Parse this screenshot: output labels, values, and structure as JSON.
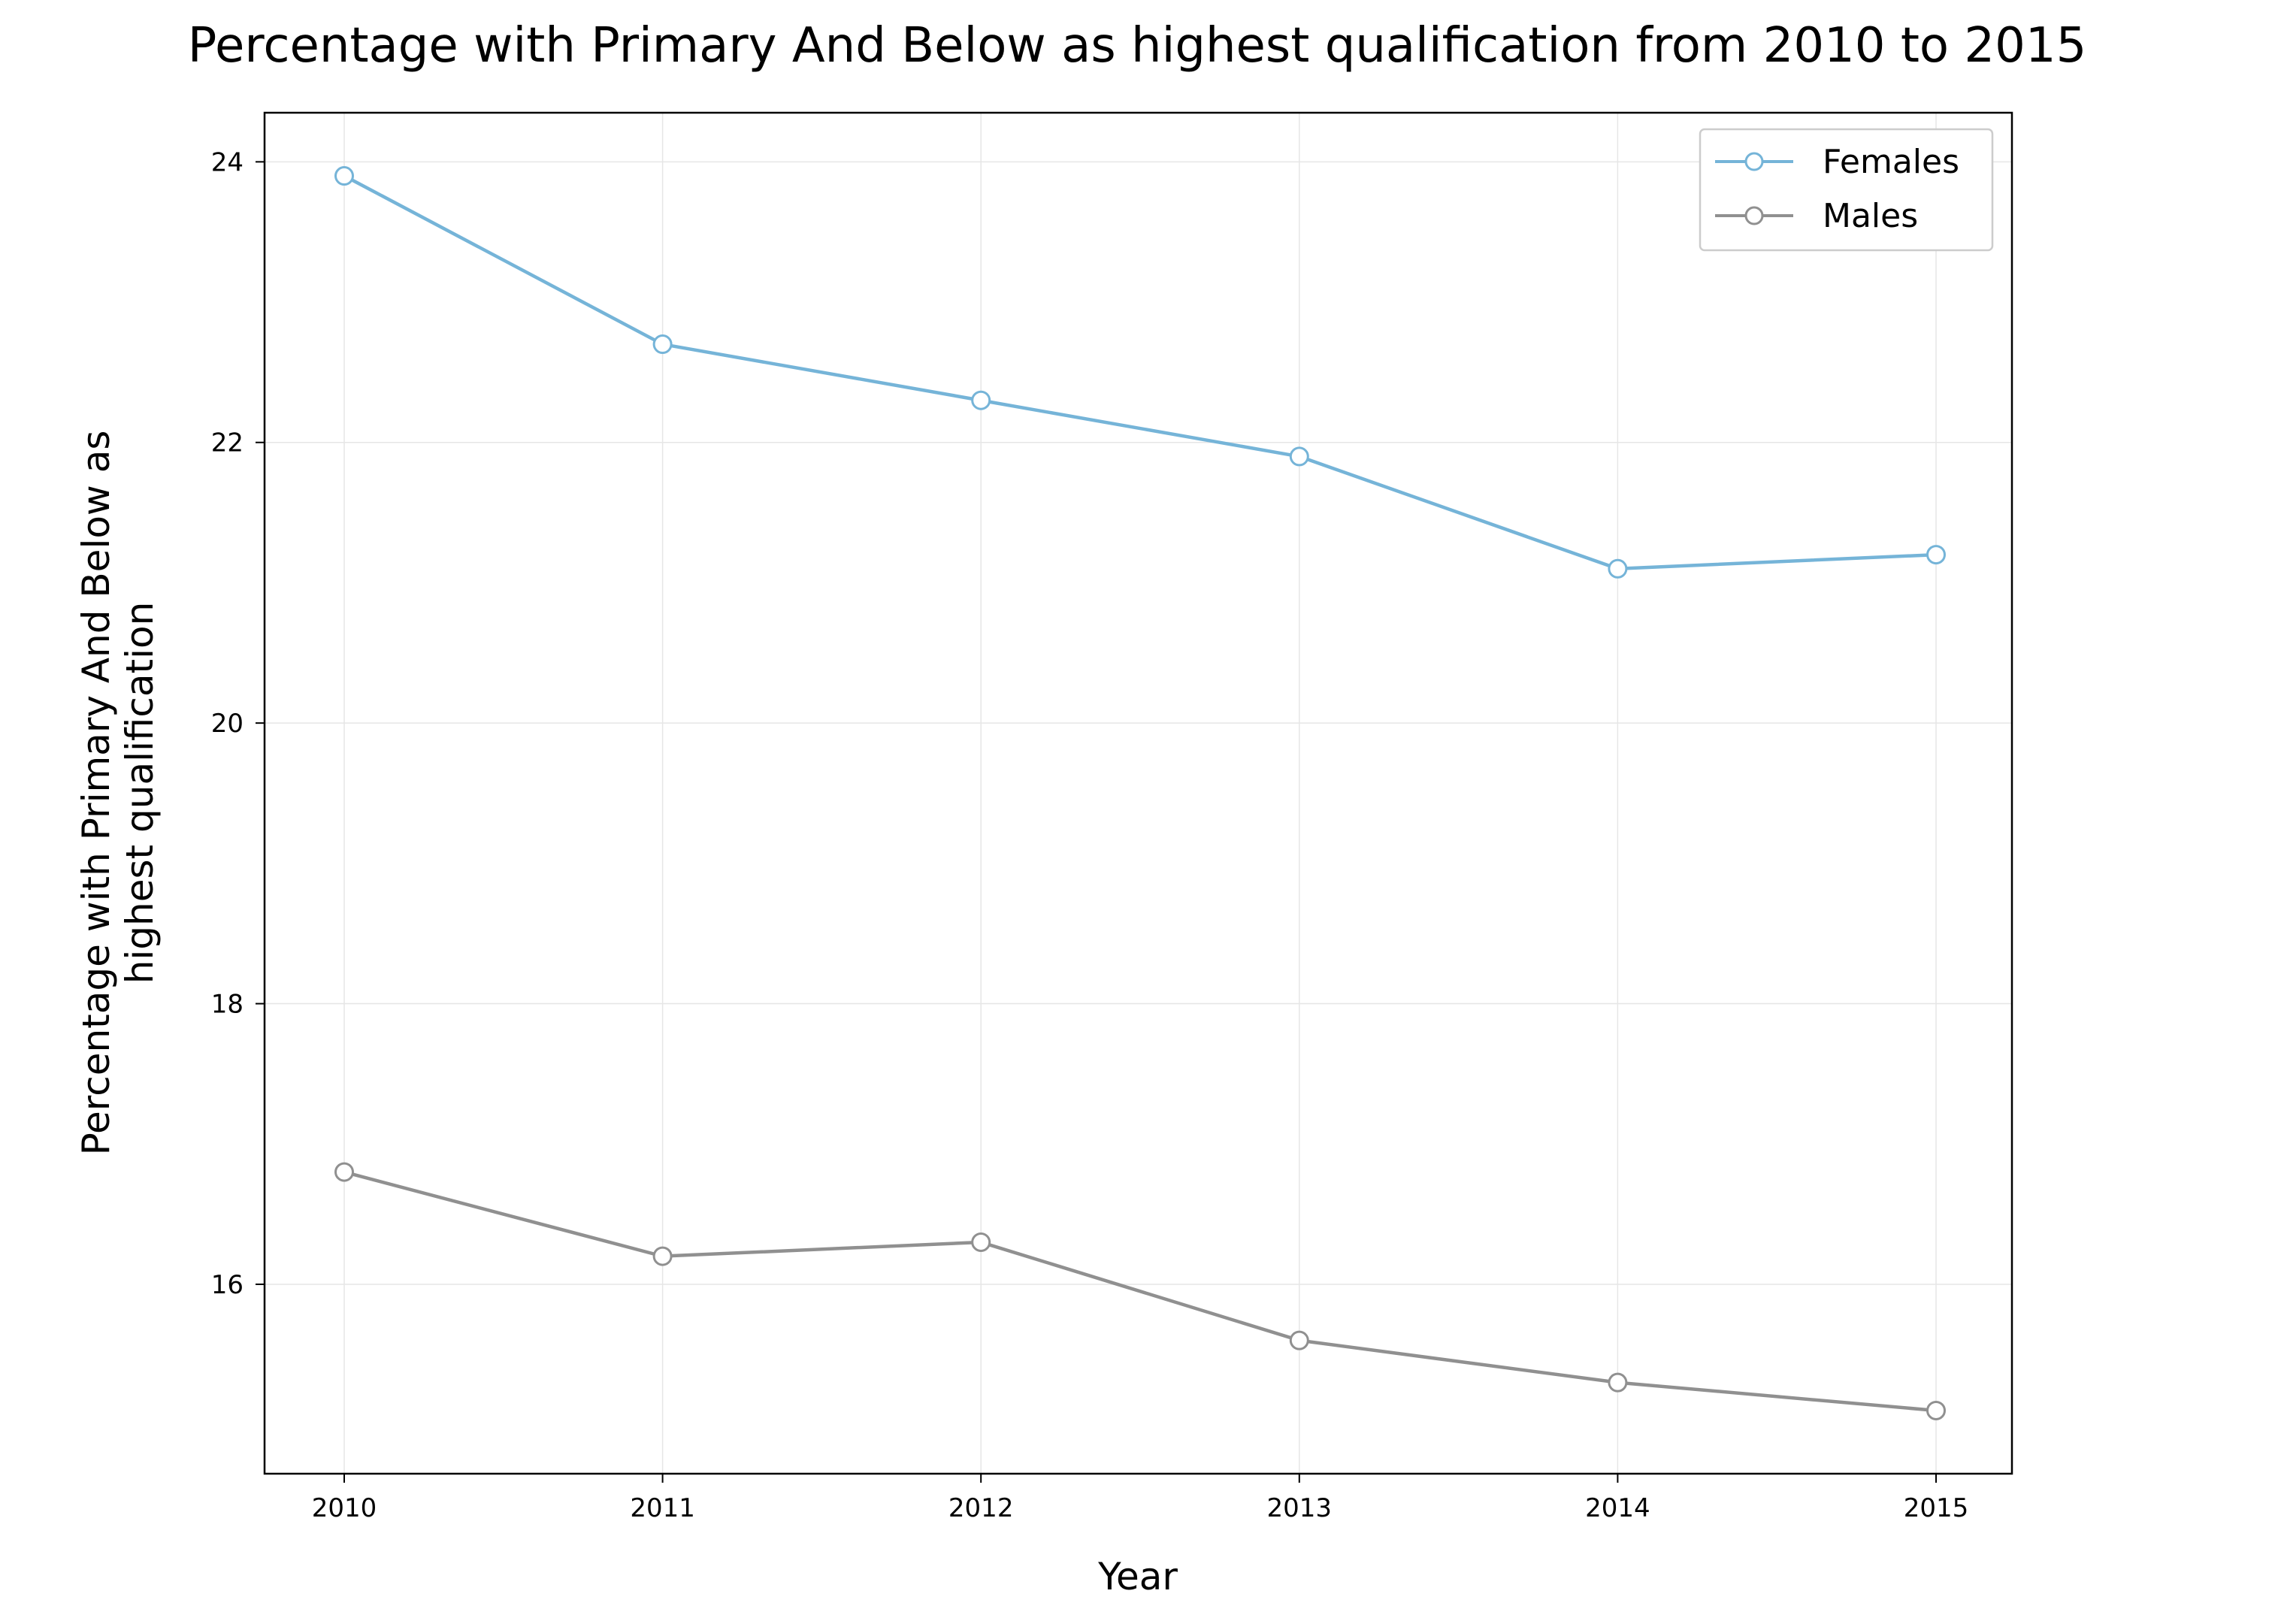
{
  "chart_data": {
    "type": "line",
    "title": "Percentage with Primary And Below as highest qualification from 2010 to 2015",
    "xlabel": "Year",
    "ylabel_lines": [
      "Percentage with Primary And Below as",
      "highest qualification"
    ],
    "x": [
      2010,
      2011,
      2012,
      2013,
      2014,
      2015
    ],
    "x_ticks": [
      "2010",
      "2011",
      "2012",
      "2013",
      "2014",
      "2015"
    ],
    "y_ticks": [
      "16",
      "18",
      "20",
      "22",
      "24"
    ],
    "ylim": [
      14.65,
      24.35
    ],
    "grid": true,
    "legend_position": "top-right",
    "series": [
      {
        "name": "Females",
        "color": "#75b4d8",
        "values": [
          23.9,
          22.7,
          22.3,
          21.9,
          21.1,
          21.2
        ]
      },
      {
        "name": "Males",
        "color": "#909090",
        "values": [
          16.8,
          16.2,
          16.3,
          15.6,
          15.3,
          15.1
        ]
      }
    ]
  }
}
